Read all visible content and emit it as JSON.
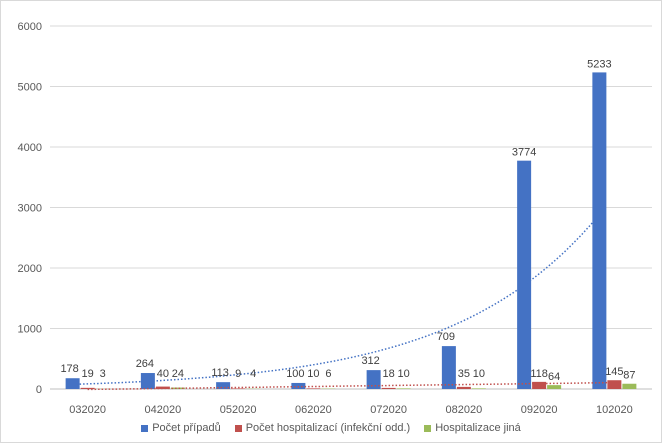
{
  "chart_data": {
    "type": "bar",
    "categories": [
      "032020",
      "042020",
      "052020",
      "062020",
      "072020",
      "082020",
      "092020",
      "102020"
    ],
    "series": [
      {
        "name": "Počet případů",
        "color": "#4472c4",
        "values": [
          178,
          264,
          113,
          100,
          312,
          709,
          3774,
          5233
        ],
        "labels": [
          "178",
          "264",
          "113",
          "100",
          "312",
          "709",
          "3774",
          "5233"
        ]
      },
      {
        "name": "Počet hospitalizací (infekční odd.)",
        "color": "#c0504d",
        "values": [
          19,
          40,
          9,
          10,
          18,
          35,
          118,
          145
        ],
        "labels": [
          "19",
          "40",
          "9",
          "10",
          "18",
          "35",
          "118",
          "145"
        ]
      },
      {
        "name": "Hospitalizace jiná",
        "color": "#9bbb59",
        "values": [
          3,
          24,
          4,
          6,
          10,
          10,
          64,
          87
        ],
        "labels": [
          "3",
          "24",
          "4",
          "6",
          "10",
          "10",
          "64",
          "87"
        ]
      }
    ],
    "trendlines": [
      {
        "series": "Počet případů",
        "type": "exponential",
        "style": "dotted",
        "color": "#4472c4"
      },
      {
        "series": "Počet hospitalizací (infekční odd.)",
        "type": "linear",
        "style": "dotted",
        "color": "#c0504d"
      }
    ],
    "yticks": [
      "0",
      "1000",
      "2000",
      "3000",
      "4000",
      "5000",
      "6000"
    ],
    "ylim": [
      0,
      6000
    ],
    "grid": true,
    "legend_position": "bottom",
    "title": "",
    "xlabel": "",
    "ylabel": ""
  }
}
